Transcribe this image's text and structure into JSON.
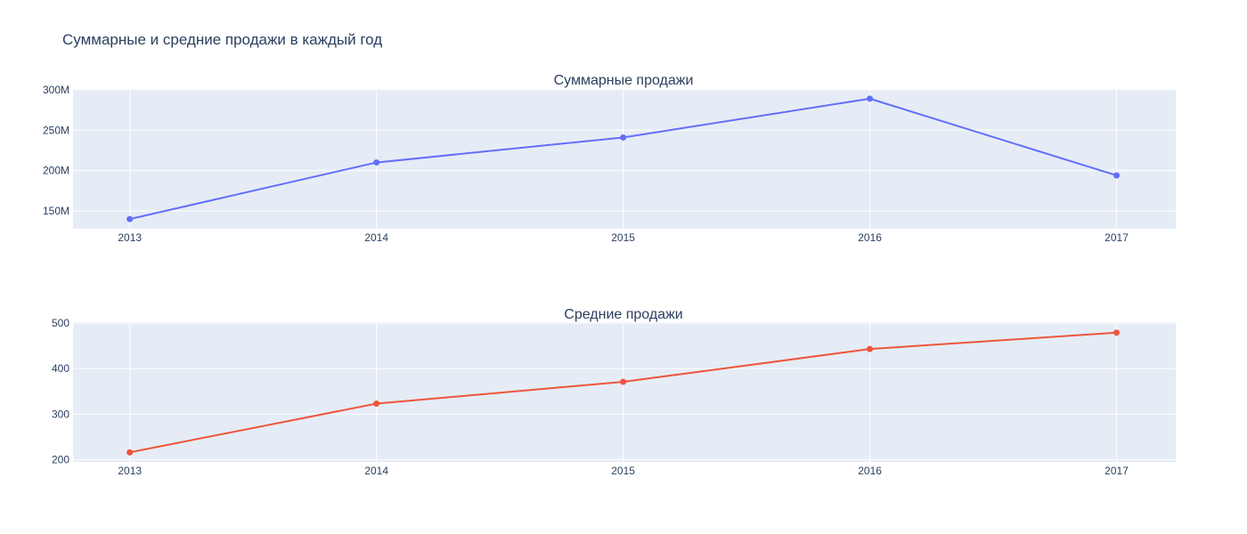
{
  "figure": {
    "title": "Суммарные и средние продажи в каждый год"
  },
  "colors": {
    "plot_background": "#e5ecf6",
    "grid": "#ffffff",
    "text": "#2a3f5f"
  },
  "chart_data": [
    {
      "type": "line",
      "title": "Суммарные продажи",
      "xlabel": "",
      "ylabel": "",
      "x": [
        2013,
        2014,
        2015,
        2016,
        2017
      ],
      "x_tick_labels": [
        "2013",
        "2014",
        "2015",
        "2016",
        "2017"
      ],
      "xlim": [
        2012.77,
        2017.24
      ],
      "ylim": [
        128000000,
        301000000
      ],
      "y_ticks": [
        150000000,
        200000000,
        250000000,
        300000000
      ],
      "y_tick_labels": [
        "150M",
        "200M",
        "250M",
        "300M"
      ],
      "grid": true,
      "legend": "none",
      "series": [
        {
          "color": "#636efa",
          "values": [
            140000000,
            210000000,
            241000000,
            289000000,
            194000000
          ]
        }
      ]
    },
    {
      "type": "line",
      "title": "Средние продажи",
      "xlabel": "",
      "ylabel": "",
      "x": [
        2013,
        2014,
        2015,
        2016,
        2017
      ],
      "x_tick_labels": [
        "2013",
        "2014",
        "2015",
        "2016",
        "2017"
      ],
      "xlim": [
        2012.77,
        2017.24
      ],
      "ylim": [
        195,
        502
      ],
      "y_ticks": [
        200,
        300,
        400,
        500
      ],
      "y_tick_labels": [
        "200",
        "300",
        "400",
        "500"
      ],
      "grid": true,
      "legend": "none",
      "series": [
        {
          "color": "#ef553b",
          "values": [
            216,
            323,
            371,
            443,
            479
          ]
        }
      ]
    }
  ]
}
